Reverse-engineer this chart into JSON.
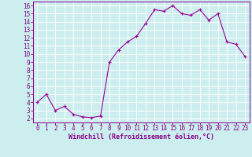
{
  "x": [
    0,
    1,
    2,
    3,
    4,
    5,
    6,
    7,
    8,
    9,
    10,
    11,
    12,
    13,
    14,
    15,
    16,
    17,
    18,
    19,
    20,
    21,
    22,
    23
  ],
  "y": [
    4.0,
    5.0,
    3.0,
    3.5,
    2.5,
    2.2,
    2.1,
    2.3,
    9.0,
    10.5,
    11.5,
    12.2,
    13.8,
    15.5,
    15.3,
    16.0,
    15.0,
    14.8,
    15.5,
    14.2,
    15.0,
    11.5,
    11.2,
    9.7
  ],
  "line_color": "#990099",
  "marker": "+",
  "marker_size": 3,
  "xlabel": "Windchill (Refroidissement éolien,°C)",
  "xlim": [
    -0.5,
    23.5
  ],
  "ylim": [
    1.5,
    16.5
  ],
  "yticks": [
    2,
    3,
    4,
    5,
    6,
    7,
    8,
    9,
    10,
    11,
    12,
    13,
    14,
    15,
    16
  ],
  "xticks": [
    0,
    1,
    2,
    3,
    4,
    5,
    6,
    7,
    8,
    9,
    10,
    11,
    12,
    13,
    14,
    15,
    16,
    17,
    18,
    19,
    20,
    21,
    22,
    23
  ],
  "bg_color": "#cceeee",
  "grid_color": "#ffffff",
  "label_color": "#880088",
  "tick_fontsize": 5.5,
  "xlabel_fontsize": 6.0,
  "linewidth": 0.8
}
